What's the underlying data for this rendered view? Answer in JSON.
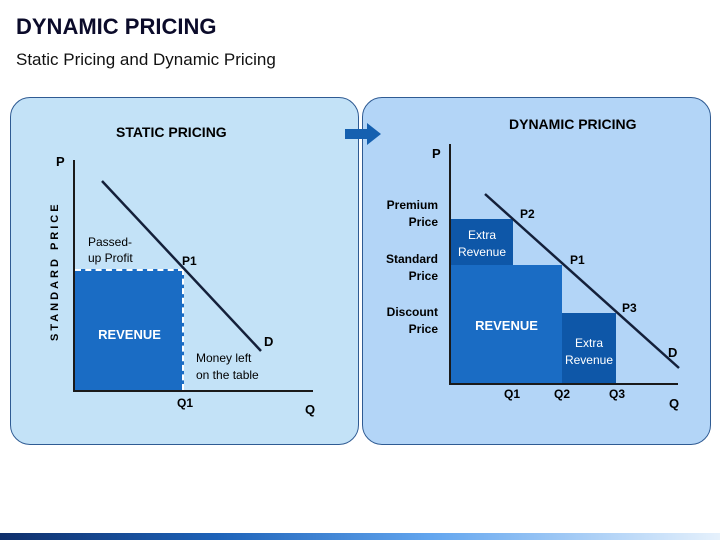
{
  "header": {
    "title": "DYNAMIC PRICING",
    "subtitle": "Static Pricing and Dynamic Pricing"
  },
  "static_panel": {
    "heading": "STATIC PRICING",
    "axis_p": "P",
    "axis_q": "Q",
    "y_axis_label": "STANDARD PRICE",
    "passed_up_line1": "Passed-",
    "passed_up_line2": "up Profit",
    "p1": "P1",
    "revenue": "REVENUE",
    "d": "D",
    "money_left_line1": "Money left",
    "money_left_line2": "on the table",
    "q1": "Q1"
  },
  "dynamic_panel": {
    "heading": "DYNAMIC PRICING",
    "axis_p": "P",
    "axis_q": "Q",
    "premium_line1": "Premium",
    "premium_line2": "Price",
    "standard_line1": "Standard",
    "standard_line2": "Price",
    "discount_line1": "Discount",
    "discount_line2": "Price",
    "extra_top_line1": "Extra",
    "extra_top_line2": "Revenue",
    "revenue": "REVENUE",
    "extra_bottom_line1": "Extra",
    "extra_bottom_line2": "Revenue",
    "p1": "P1",
    "p2": "P2",
    "p3": "P3",
    "d": "D",
    "q1": "Q1",
    "q2": "Q2",
    "q3": "Q3"
  },
  "colors": {
    "static_panel_bg": "#c3e2f7",
    "dynamic_panel_bg": "#b3d5f7",
    "revenue_fill": "#1a6cc4",
    "extra_fill": "#0e57a8",
    "arrow": "#1560b0"
  }
}
